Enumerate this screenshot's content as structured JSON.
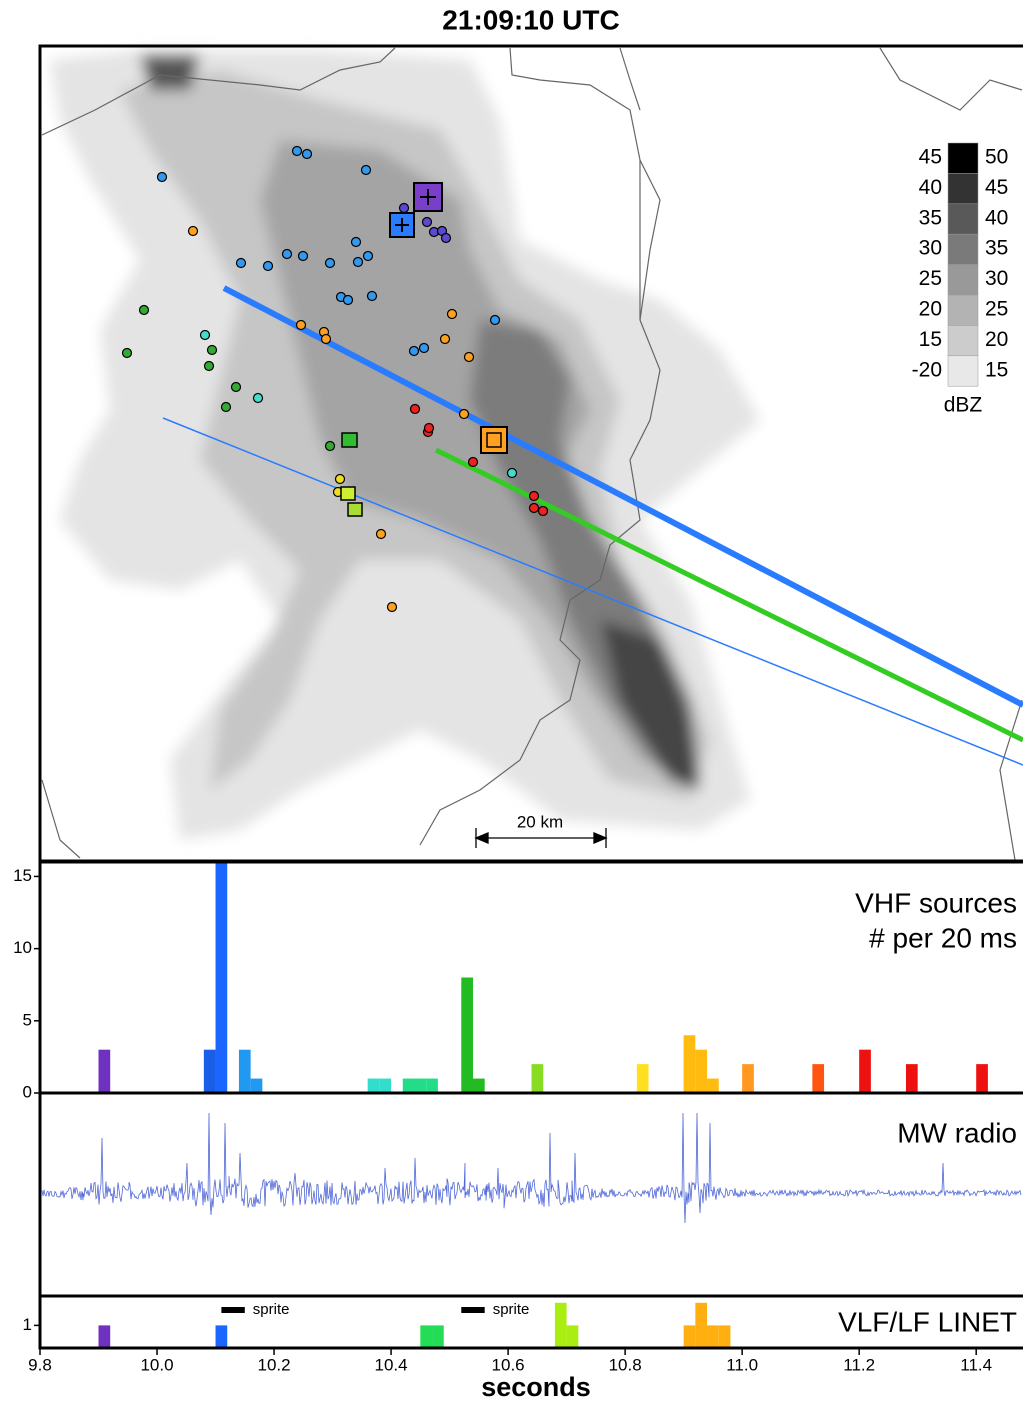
{
  "chart_data": [
    {
      "type": "map",
      "title": "21:09:10 UTC",
      "colorbar": {
        "lower": [
          45,
          40,
          35,
          30,
          25,
          20,
          15,
          -20
        ],
        "upper": [
          50,
          45,
          40,
          35,
          30,
          25,
          20,
          15
        ],
        "colors": [
          "#000000",
          "#333333",
          "#595959",
          "#7a7a7a",
          "#999999",
          "#b3b3b3",
          "#cccccc",
          "#e8e8e8"
        ],
        "label": "dBZ"
      },
      "scale_label": "20 km"
    },
    {
      "type": "bar",
      "label": [
        "VHF sources",
        "# per 20 ms"
      ],
      "x": [
        9.91,
        10.09,
        10.11,
        10.15,
        10.17,
        10.37,
        10.39,
        10.43,
        10.45,
        10.47,
        10.53,
        10.55,
        10.65,
        10.83,
        10.91,
        10.93,
        10.95,
        11.01,
        11.13,
        11.21,
        11.29,
        11.41
      ],
      "values": [
        3,
        3,
        16,
        3,
        1,
        1,
        1,
        1,
        1,
        1,
        8,
        1,
        2,
        2,
        4,
        3,
        1,
        2,
        2,
        3,
        2,
        2
      ],
      "colors": [
        "#7030c0",
        "#1a5ee8",
        "#1a66ff",
        "#2299f0",
        "#2299f0",
        "#33ddcc",
        "#33ddcc",
        "#22dd88",
        "#22dd88",
        "#22dd88",
        "#22bb22",
        "#22bb22",
        "#88dd22",
        "#ffe020",
        "#ffbb10",
        "#ffbb10",
        "#ffbb10",
        "#ff9920",
        "#ff5511",
        "#ee1111",
        "#ee1111",
        "#ee1111"
      ],
      "xlim": [
        9.8,
        11.48
      ],
      "ylim": [
        0,
        16
      ],
      "yticks": [
        0,
        5,
        10,
        15
      ]
    },
    {
      "type": "waveform",
      "label": "MW radio",
      "color": "#5068d8",
      "xlim": [
        9.8,
        11.48
      ]
    },
    {
      "type": "bar",
      "label": [
        "VLF/LF LINET"
      ],
      "x": [
        9.91,
        10.11,
        10.46,
        10.48,
        10.69,
        10.71,
        10.91,
        10.93,
        10.95,
        10.97
      ],
      "values": [
        1,
        1,
        1,
        1,
        2,
        1,
        1,
        2,
        1,
        1
      ],
      "colors": [
        "#7030c0",
        "#1a66ff",
        "#22dd55",
        "#22dd55",
        "#aaee11",
        "#aaee11",
        "#ffb010",
        "#ffb010",
        "#ffb010",
        "#ffb010"
      ],
      "xlim": [
        9.8,
        11.48
      ],
      "ylim": [
        0,
        2.3
      ],
      "yticks": [
        1
      ],
      "xticks": [
        9.8,
        {
          "value": 10,
          "label": "10.0"
        },
        10.2,
        10.4,
        10.6,
        10.8,
        {
          "value": 11,
          "label": "11.0"
        },
        11.2,
        11.4
      ],
      "xlabel": "seconds",
      "annotations": [
        {
          "text": "sprite",
          "x": [
            10.11,
            10.15
          ]
        },
        {
          "text": "sprite",
          "x": [
            10.52,
            10.56
          ]
        }
      ]
    }
  ]
}
